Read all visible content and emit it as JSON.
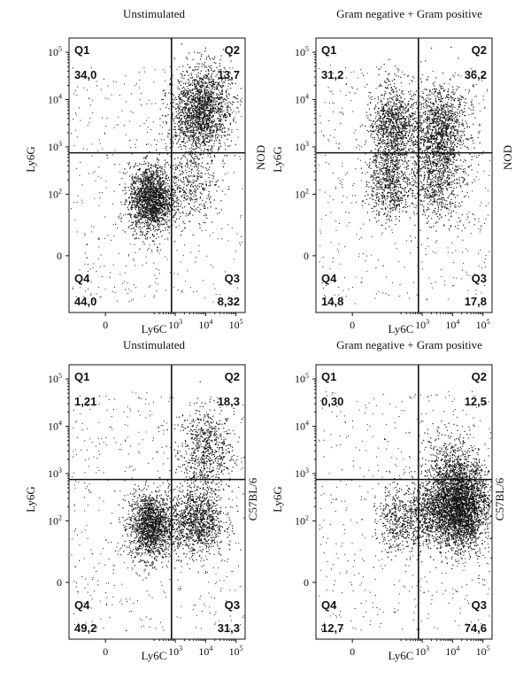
{
  "chart_data": [
    {
      "type": "scatter",
      "title": "Unstimulated",
      "xlabel": "Ly6C",
      "ylabel": "Ly6G",
      "side_label": "NOD",
      "quadrants": [
        {
          "name": "Q1",
          "value": "34,0"
        },
        {
          "name": "Q2",
          "value": "13,7"
        },
        {
          "name": "Q3",
          "value": "8,32"
        },
        {
          "name": "Q4",
          "value": "44,0"
        }
      ],
      "x_ticks": [
        "0",
        "10^3",
        "10^4",
        "10^5"
      ],
      "y_ticks": [
        "10^5",
        "10^4",
        "10^3",
        "10^2",
        "0"
      ],
      "gate": {
        "x": 750,
        "y": 750
      },
      "clusters": [
        {
          "x": 8000,
          "y": 7000,
          "n": 1400
        },
        {
          "x": 150,
          "y": 80,
          "n": 1800
        },
        {
          "x": 4000,
          "y": 3000,
          "n": 500
        },
        {
          "x": 3000,
          "y": 150,
          "n": 350
        }
      ]
    },
    {
      "type": "scatter",
      "title": "Gram negative + Gram positive",
      "xlabel": "Ly6C",
      "ylabel": "Ly6G",
      "side_label": "NOD",
      "quadrants": [
        {
          "name": "Q1",
          "value": "31,2"
        },
        {
          "name": "Q2",
          "value": "36,2"
        },
        {
          "name": "Q3",
          "value": "17,8"
        },
        {
          "name": "Q4",
          "value": "14,8"
        }
      ],
      "x_ticks": [
        "0",
        "10^3",
        "10^4",
        "10^5"
      ],
      "y_ticks": [
        "10^5",
        "10^4",
        "10^3",
        "10^2",
        "0"
      ],
      "gate": {
        "x": 750,
        "y": 750
      },
      "clusters": [
        {
          "x": 100,
          "y": 2500,
          "n": 1100
        },
        {
          "x": 3500,
          "y": 2500,
          "n": 1300
        },
        {
          "x": 3000,
          "y": 200,
          "n": 700
        },
        {
          "x": 80,
          "y": 150,
          "n": 600
        }
      ]
    },
    {
      "type": "scatter",
      "title": "Unstimulated",
      "xlabel": "Ly6C",
      "ylabel": "Ly6G",
      "side_label": "C57BL/6",
      "quadrants": [
        {
          "name": "Q1",
          "value": "1,21"
        },
        {
          "name": "Q2",
          "value": "18,3"
        },
        {
          "name": "Q3",
          "value": "31,3"
        },
        {
          "name": "Q4",
          "value": "49,2"
        }
      ],
      "x_ticks": [
        "0",
        "10^3",
        "10^4",
        "10^5"
      ],
      "y_ticks": [
        "10^5",
        "10^4",
        "10^3",
        "10^2",
        "0"
      ],
      "gate": {
        "x": 750,
        "y": 750
      },
      "clusters": [
        {
          "x": 10000,
          "y": 3000,
          "n": 700
        },
        {
          "x": 150,
          "y": 80,
          "n": 1600
        },
        {
          "x": 5000,
          "y": 100,
          "n": 1100
        }
      ]
    },
    {
      "type": "scatter",
      "title": "Gram negative + Gram positive",
      "xlabel": "Ly6C",
      "ylabel": "Ly6G",
      "side_label": "C57BL/6",
      "quadrants": [
        {
          "name": "Q1",
          "value": "0,30"
        },
        {
          "name": "Q2",
          "value": "12,5"
        },
        {
          "name": "Q3",
          "value": "74,6"
        },
        {
          "name": "Q4",
          "value": "12,7"
        }
      ],
      "x_ticks": [
        "0",
        "10^3",
        "10^4",
        "10^5"
      ],
      "y_ticks": [
        "10^5",
        "10^4",
        "10^3",
        "10^2",
        "0"
      ],
      "gate": {
        "x": 750,
        "y": 750
      },
      "clusters": [
        {
          "x": 20000,
          "y": 200,
          "n": 2800
        },
        {
          "x": 2000,
          "y": 150,
          "n": 900
        },
        {
          "x": 10000,
          "y": 1000,
          "n": 600
        },
        {
          "x": 150,
          "y": 100,
          "n": 400
        }
      ]
    }
  ]
}
